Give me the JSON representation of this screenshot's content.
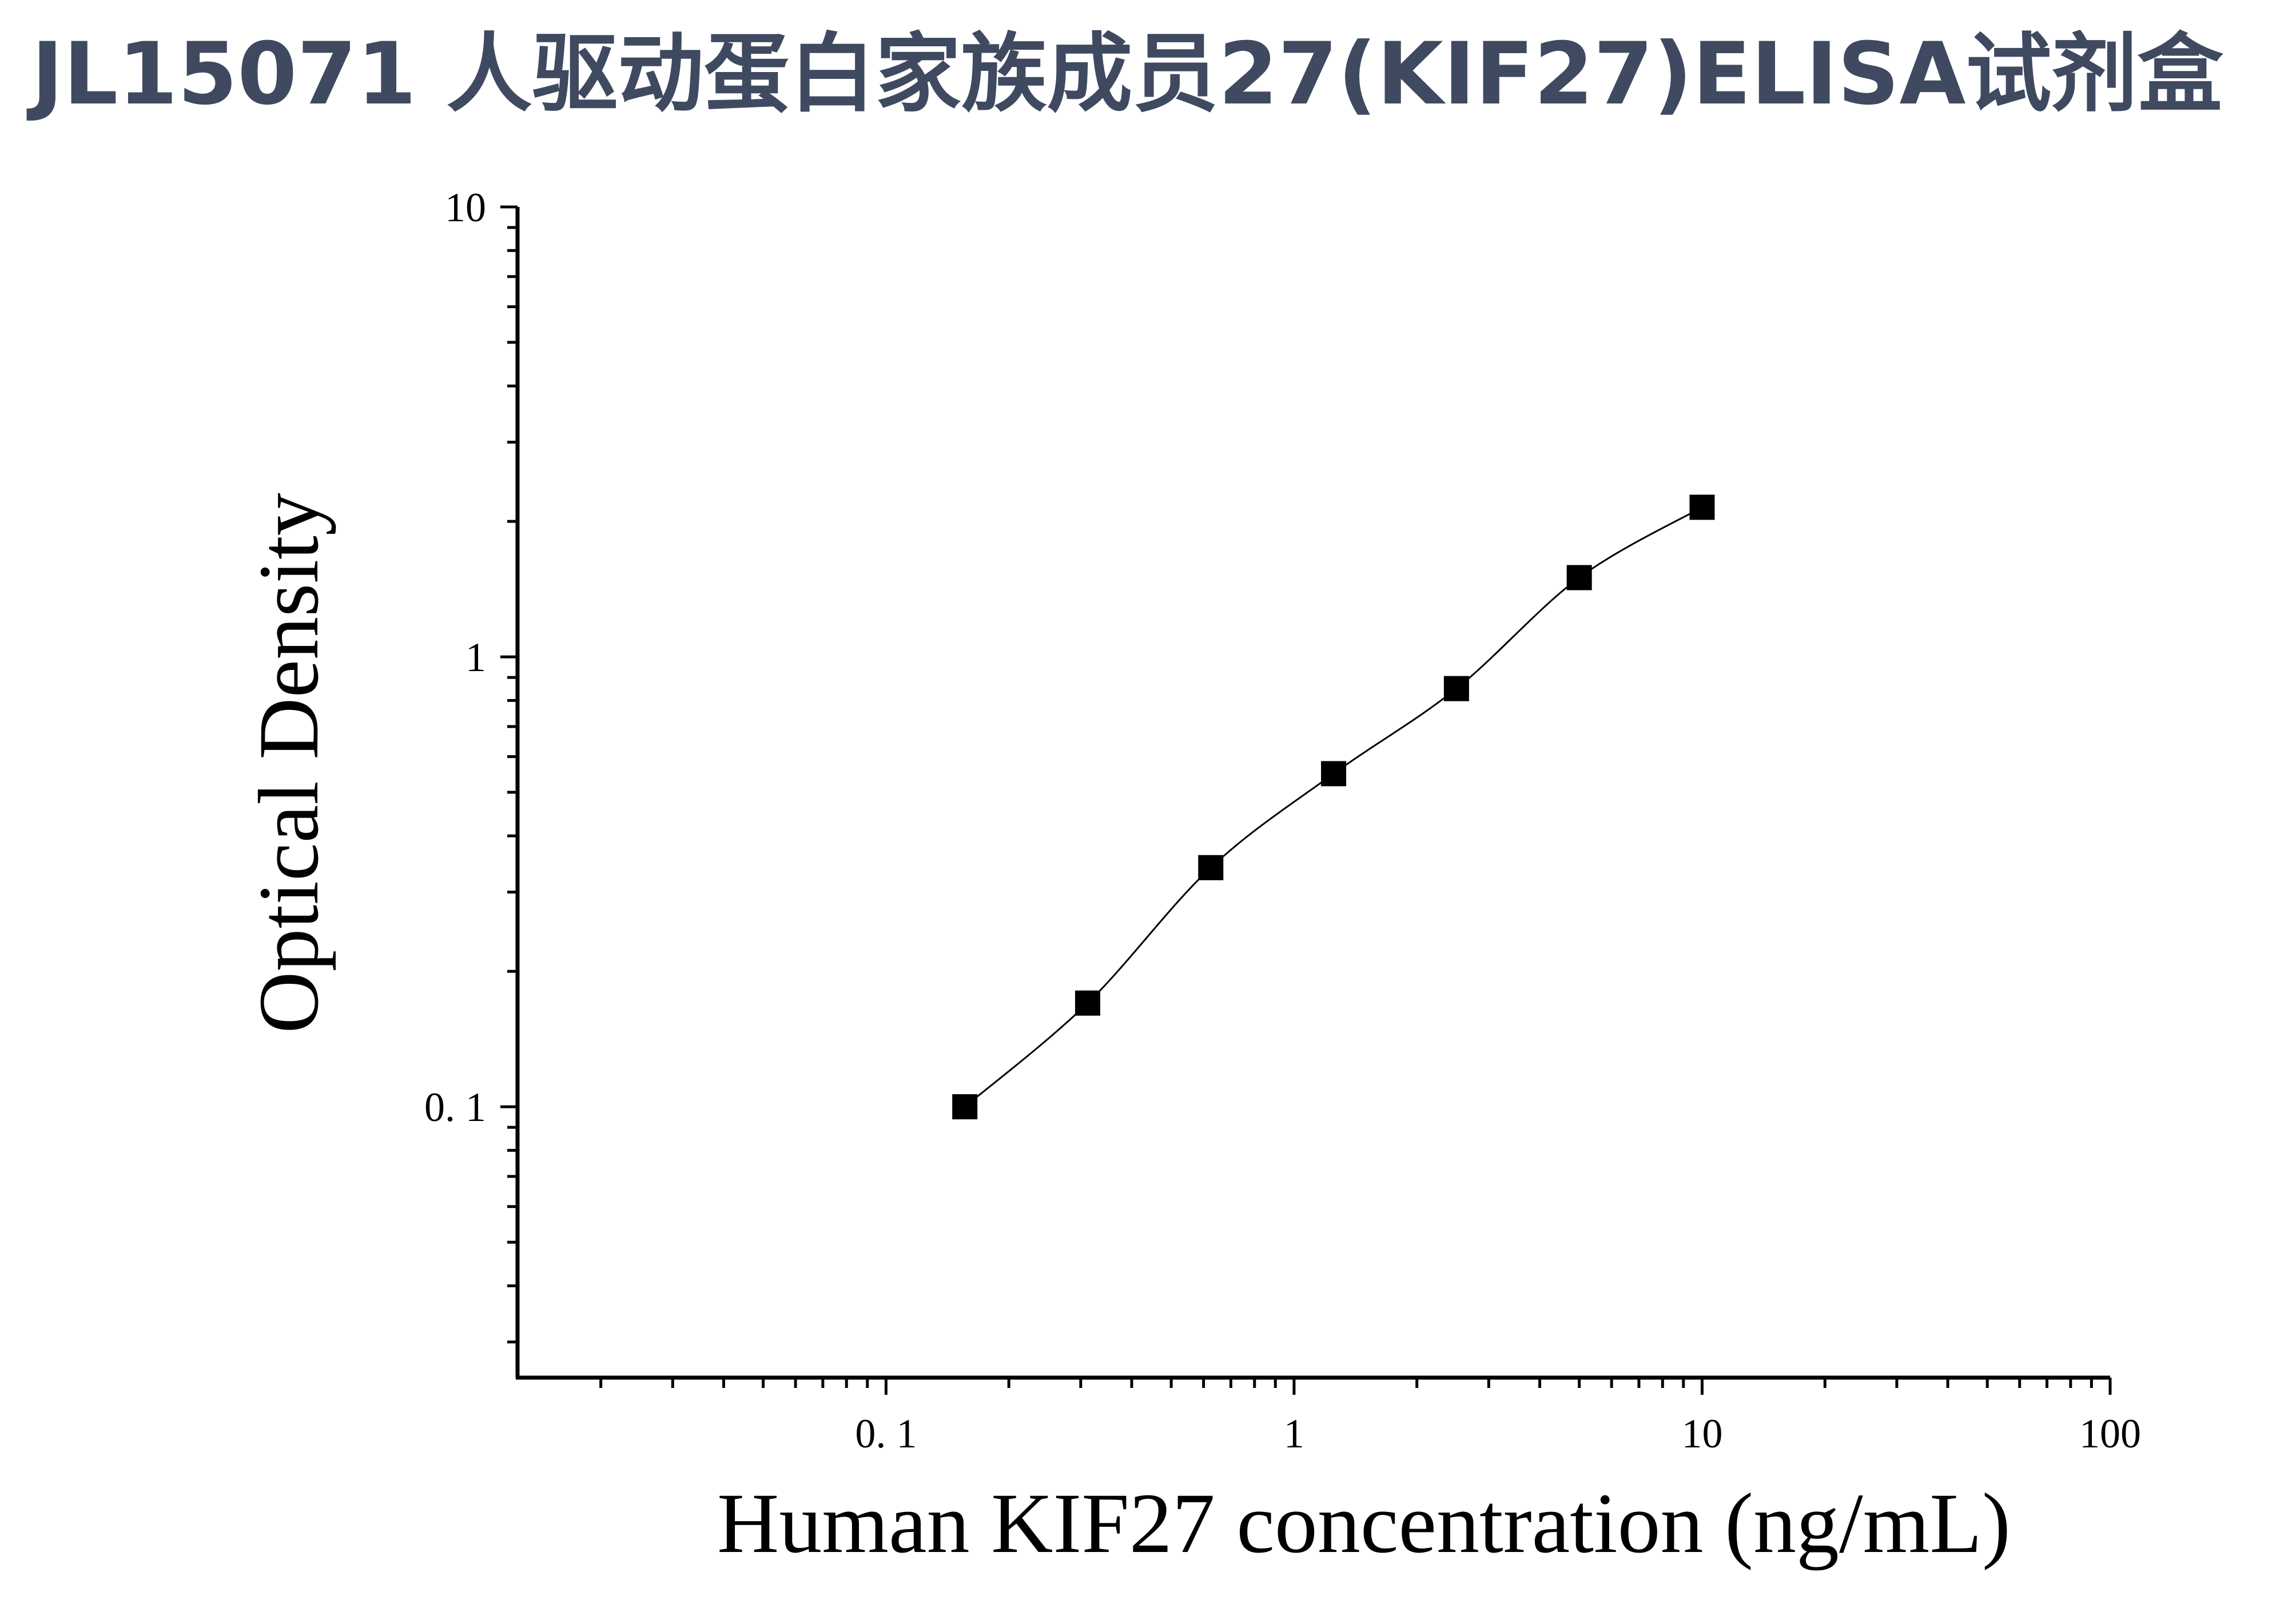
{
  "chart_data": {
    "type": "scatter",
    "title": "JL15071 人驱动蛋白家族成员27(KIF27)ELISA试剂盒",
    "xlabel": "Human KIF27 concentration (ng/mL)",
    "ylabel": "Optical Density",
    "x_scale": "log",
    "y_scale": "log",
    "xlim": [
      0.0125,
      100
    ],
    "ylim": [
      0.025,
      10
    ],
    "x_ticks": [
      {
        "value": 0.1,
        "label": "0. 1"
      },
      {
        "value": 1,
        "label": "1"
      },
      {
        "value": 10,
        "label": "10"
      },
      {
        "value": 100,
        "label": "100"
      }
    ],
    "y_ticks": [
      {
        "value": 0.1,
        "label": "0. 1"
      },
      {
        "value": 1,
        "label": "1"
      },
      {
        "value": 10,
        "label": "10"
      }
    ],
    "grid": false,
    "marker": "square",
    "series": [
      {
        "x": [
          0.156,
          0.312,
          0.625,
          1.25,
          2.5,
          5,
          10
        ],
        "y": [
          0.1,
          0.17,
          0.34,
          0.55,
          0.85,
          1.5,
          2.15
        ],
        "fit": "smooth curve"
      }
    ],
    "colors": {
      "marks": "#000000",
      "title": "#3f4a60"
    }
  }
}
